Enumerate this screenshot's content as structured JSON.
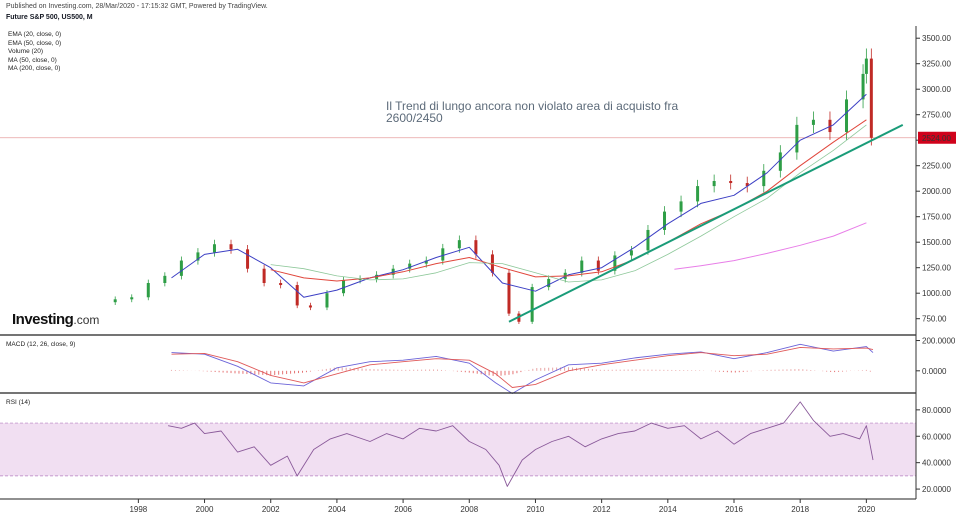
{
  "header": {
    "published": "Published on Investing.com, 28/Mar/2020 - 17:15:32 GMT, Powered by TradingView.",
    "symbol": "Future S&P 500, US500, M"
  },
  "indicators": [
    "EMA (20, close, 0)",
    "EMA (50, close, 0)",
    "Volume (20)",
    "MA (50, close, 0)",
    "MA (200, close, 0)"
  ],
  "annotation": "Il Trend di lungo ancora non violato area di acquisto fra 2600/2450",
  "logo": {
    "main": "Investing",
    "suffix": ".com"
  },
  "current_price": {
    "label": "2524.00",
    "value": 2524
  },
  "colors": {
    "price_tag": "#d0021b",
    "trendline": "#1a9c79",
    "ema20": "#3c3fc4",
    "ema50": "#e0463b",
    "ma50": "#8ec89a",
    "ma200": "#e87ee8",
    "candle_up": "#2e9e46",
    "candle_down": "#c02a25",
    "rsi_fill": "#f1dff2",
    "rsi_line": "#8a5a9a"
  },
  "chart_data": [
    {
      "type": "line",
      "title": "Future S&P 500, US500, M",
      "y_ticks": [
        "750.00",
        "1000.00",
        "1250.00",
        "1500.00",
        "1750.00",
        "2000.00",
        "2250.00",
        "2500.00",
        "2750.00",
        "3000.00",
        "3250.00",
        "3500.00"
      ],
      "y_tick_values": [
        750,
        1000,
        1250,
        1500,
        1750,
        2000,
        2250,
        2500,
        2750,
        3000,
        3250,
        3500
      ],
      "ylim": [
        600,
        3600
      ],
      "x_ticks": [
        "1998",
        "2000",
        "2002",
        "2004",
        "2006",
        "2008",
        "2010",
        "2012",
        "2014",
        "2016",
        "2018",
        "2020"
      ],
      "x_tick_values": [
        1998,
        2000,
        2002,
        2004,
        2006,
        2008,
        2010,
        2012,
        2014,
        2016,
        2018,
        2020
      ],
      "xlim": [
        1994.0,
        2021.5
      ],
      "series": [
        {
          "id": "price",
          "style": "candles",
          "x": [
            1997.3,
            1997.8,
            1998.3,
            1998.8,
            1999.3,
            1999.8,
            2000.3,
            2000.8,
            2001.3,
            2001.8,
            2002.3,
            2002.8,
            2003.2,
            2003.7,
            2004.2,
            2004.7,
            2005.2,
            2005.7,
            2006.2,
            2006.7,
            2007.2,
            2007.7,
            2008.2,
            2008.7,
            2009.2,
            2009.5,
            2009.9,
            2010.4,
            2010.9,
            2011.4,
            2011.9,
            2012.4,
            2012.9,
            2013.4,
            2013.9,
            2014.4,
            2014.9,
            2015.4,
            2015.9,
            2016.4,
            2016.9,
            2017.4,
            2017.9,
            2018.4,
            2018.9,
            2019.4,
            2019.9,
            2020.0,
            2020.15
          ],
          "y": [
            940,
            960,
            1100,
            1170,
            1320,
            1400,
            1480,
            1430,
            1240,
            1100,
            1080,
            880,
            860,
            1000,
            1130,
            1140,
            1180,
            1240,
            1290,
            1320,
            1440,
            1520,
            1380,
            1200,
            800,
            720,
            1060,
            1140,
            1200,
            1320,
            1220,
            1370,
            1420,
            1620,
            1800,
            1900,
            2050,
            2100,
            2080,
            2050,
            2200,
            2380,
            2650,
            2700,
            2580,
            2900,
            3150,
            3300,
            2524
          ]
        },
        {
          "id": "ema20",
          "x": [
            1999.0,
            2000.0,
            2001.0,
            2002.0,
            2003.0,
            2004.0,
            2005.0,
            2006.0,
            2007.0,
            2008.0,
            2009.0,
            2010.0,
            2011.0,
            2012.0,
            2013.0,
            2014.0,
            2015.0,
            2016.0,
            2017.0,
            2018.0,
            2019.0,
            2020.0
          ],
          "y": [
            1150,
            1380,
            1430,
            1250,
            960,
            1030,
            1150,
            1230,
            1350,
            1450,
            1100,
            1020,
            1180,
            1250,
            1450,
            1680,
            1880,
            1960,
            2180,
            2500,
            2650,
            2950
          ]
        },
        {
          "id": "ema50",
          "x": [
            2002.0,
            2003.0,
            2004.0,
            2005.0,
            2006.0,
            2007.0,
            2008.0,
            2009.0,
            2010.0,
            2011.0,
            2012.0,
            2013.0,
            2014.0,
            2015.0,
            2016.0,
            2017.0,
            2018.0,
            2019.0,
            2020.0
          ],
          "y": [
            1230,
            1150,
            1120,
            1150,
            1210,
            1290,
            1350,
            1250,
            1160,
            1170,
            1210,
            1330,
            1500,
            1680,
            1820,
            2000,
            2250,
            2480,
            2700
          ]
        },
        {
          "id": "ma50",
          "x": [
            2002.0,
            2003.0,
            2004.0,
            2005.0,
            2006.0,
            2007.0,
            2008.0,
            2009.0,
            2010.0,
            2011.0,
            2012.0,
            2013.0,
            2014.0,
            2015.0,
            2016.0,
            2017.0,
            2018.0,
            2019.0,
            2020.0
          ],
          "y": [
            1280,
            1240,
            1170,
            1130,
            1140,
            1200,
            1300,
            1290,
            1200,
            1110,
            1130,
            1220,
            1380,
            1560,
            1750,
            1930,
            2180,
            2400,
            2650
          ]
        },
        {
          "id": "ma200",
          "x": [
            2014.2,
            2015.0,
            2016.0,
            2017.0,
            2018.0,
            2019.0,
            2020.0
          ],
          "y": [
            1235,
            1270,
            1320,
            1390,
            1470,
            1560,
            1690
          ]
        },
        {
          "id": "trendline",
          "x": [
            2009.2,
            2021.1
          ],
          "y": [
            720,
            2650
          ]
        }
      ],
      "hline": 2524
    },
    {
      "type": "line",
      "title": "MACD (12, 26, close, 9)",
      "y_ticks": [
        "200.0000",
        "0.0000"
      ],
      "y_tick_values": [
        200,
        0
      ],
      "ylim": [
        -140,
        230
      ],
      "series": [
        {
          "id": "macd",
          "x": [
            1999.0,
            2000.0,
            2001.0,
            2002.0,
            2003.0,
            2004.0,
            2005.0,
            2006.0,
            2007.0,
            2008.0,
            2008.8,
            2009.3,
            2010.0,
            2011.0,
            2012.0,
            2013.0,
            2014.0,
            2015.0,
            2016.0,
            2017.0,
            2018.0,
            2019.0,
            2020.0,
            2020.2
          ],
          "y": [
            120,
            110,
            30,
            -80,
            -100,
            20,
            60,
            70,
            95,
            50,
            -80,
            -150,
            -60,
            40,
            50,
            85,
            110,
            125,
            80,
            120,
            175,
            130,
            160,
            120
          ]
        },
        {
          "id": "signal",
          "x": [
            1999.0,
            2000.0,
            2001.0,
            2002.0,
            2003.0,
            2004.0,
            2005.0,
            2006.0,
            2007.0,
            2008.0,
            2008.8,
            2009.3,
            2010.0,
            2011.0,
            2012.0,
            2013.0,
            2014.0,
            2015.0,
            2016.0,
            2017.0,
            2018.0,
            2019.0,
            2020.0,
            2020.2
          ],
          "y": [
            110,
            115,
            60,
            -30,
            -80,
            -20,
            40,
            60,
            80,
            70,
            -20,
            -110,
            -90,
            0,
            40,
            70,
            100,
            120,
            100,
            110,
            155,
            145,
            150,
            140
          ]
        }
      ]
    },
    {
      "type": "line",
      "title": "RSI (14)",
      "y_ticks": [
        "80.0000",
        "60.0000",
        "40.0000",
        "20.0000"
      ],
      "y_tick_values": [
        80,
        60,
        40,
        20
      ],
      "ylim": [
        14,
        92
      ],
      "bands": [
        30,
        70
      ],
      "series": [
        {
          "id": "rsi",
          "x": [
            1998.9,
            1999.3,
            1999.7,
            2000.0,
            2000.5,
            2001.0,
            2001.5,
            2002.0,
            2002.5,
            2002.8,
            2003.3,
            2003.8,
            2004.3,
            2005.0,
            2005.5,
            2006.0,
            2006.5,
            2007.0,
            2007.5,
            2008.0,
            2008.5,
            2008.9,
            2009.15,
            2009.6,
            2010.0,
            2010.5,
            2011.0,
            2011.5,
            2012.0,
            2012.5,
            2013.0,
            2013.5,
            2014.0,
            2014.5,
            2015.0,
            2015.5,
            2016.0,
            2016.5,
            2017.0,
            2017.5,
            2018.0,
            2018.4,
            2018.9,
            2019.3,
            2019.8,
            2020.0,
            2020.2
          ],
          "y": [
            68,
            66,
            70,
            62,
            64,
            48,
            52,
            38,
            45,
            30,
            50,
            58,
            62,
            56,
            62,
            58,
            66,
            64,
            68,
            56,
            50,
            38,
            22,
            42,
            50,
            56,
            60,
            52,
            58,
            62,
            64,
            70,
            66,
            68,
            58,
            64,
            54,
            62,
            66,
            70,
            86,
            72,
            60,
            62,
            58,
            68,
            42
          ]
        }
      ]
    }
  ]
}
